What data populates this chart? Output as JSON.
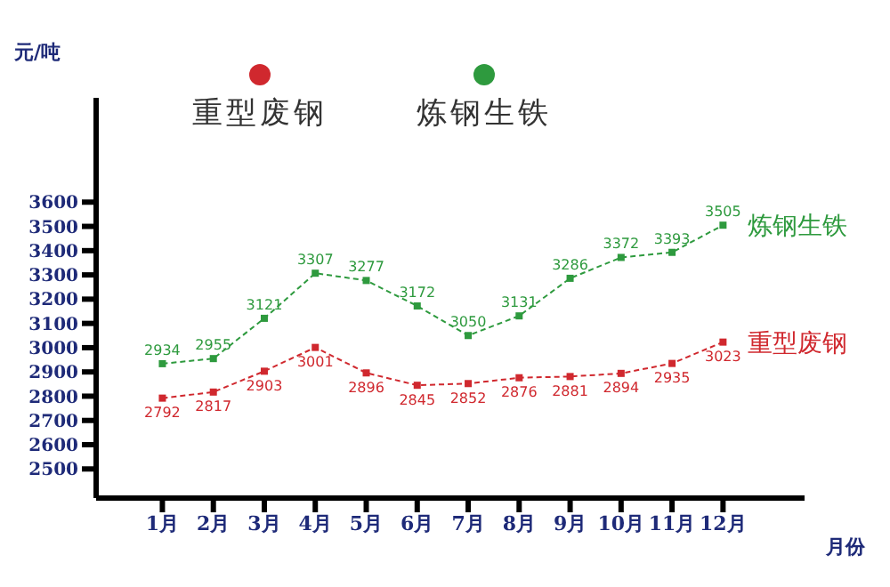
{
  "chart_data": {
    "type": "line",
    "ylabel": "元/吨",
    "xlabel": "月份",
    "categories": [
      "1月",
      "2月",
      "3月",
      "4月",
      "5月",
      "6月",
      "7月",
      "8月",
      "9月",
      "10月",
      "11月",
      "12月"
    ],
    "series": [
      {
        "name": "重型废钢",
        "color": "#d0282e",
        "values": [
          2792,
          2817,
          2903,
          3001,
          2896,
          2845,
          2852,
          2876,
          2881,
          2894,
          2935,
          3023
        ]
      },
      {
        "name": "炼钢生铁",
        "color": "#2e9a3e",
        "values": [
          2934,
          2955,
          3121,
          3307,
          3277,
          3172,
          3050,
          3131,
          3286,
          3372,
          3393,
          3505
        ]
      }
    ],
    "ylim": [
      2380,
      4030
    ],
    "yticks": [
      2500,
      2600,
      2700,
      2800,
      2900,
      3000,
      3100,
      3200,
      3300,
      3400,
      3500,
      3600
    ],
    "grid": false,
    "legend": "top left",
    "data_labels": true,
    "marker": "square",
    "line_style": "dashed"
  }
}
